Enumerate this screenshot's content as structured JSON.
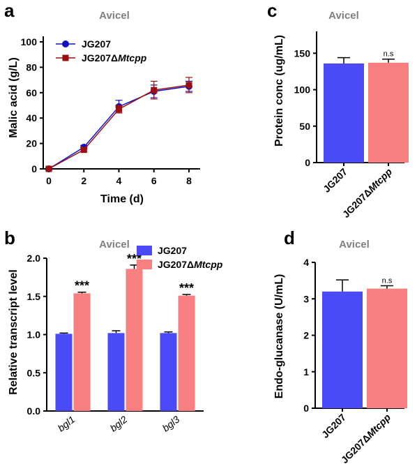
{
  "colors": {
    "blue": "#4a4af7",
    "pink": "#f98080",
    "line_blue": "#1010c8",
    "line_red": "#9a1010",
    "title_gray": "#7f7f7f"
  },
  "panel_letters": {
    "a": "a",
    "b": "b",
    "c": "c",
    "d": "d"
  },
  "mtcpp_suffix": "Mtcpp",
  "chart_data": [
    {
      "panel": "a",
      "type": "line",
      "title": "Avicel",
      "xlabel": "Time (d)",
      "ylabel": "Malic acid (g/L)",
      "xlim": [
        0,
        9
      ],
      "ylim": [
        0,
        100
      ],
      "x_ticks": [
        "0",
        "2",
        "4",
        "6",
        "8"
      ],
      "y_ticks": [
        "0",
        "20",
        "40",
        "60",
        "80",
        "100"
      ],
      "legend_position": "top-left",
      "series": [
        {
          "name": "JG207",
          "marker": "circle",
          "x": [
            0,
            2,
            4,
            6,
            8
          ],
          "y": [
            0,
            17,
            49,
            61,
            65
          ],
          "err": [
            1,
            1.5,
            5,
            5,
            4
          ]
        },
        {
          "name": "JG207Δ",
          "name_suffix": "Mtcpp",
          "marker": "square",
          "x": [
            0,
            2,
            4,
            6,
            8
          ],
          "y": [
            0,
            15,
            47,
            62,
            66
          ],
          "err": [
            1,
            1.5,
            3,
            7,
            6
          ]
        }
      ]
    },
    {
      "panel": "b",
      "type": "bar",
      "title": "Avicel",
      "ylabel": "Relative transcript level",
      "ylim": [
        0,
        2.0
      ],
      "y_ticks": [
        "0.0",
        "0.5",
        "1.0",
        "1.5",
        "2.0"
      ],
      "categories": [
        "bgl1",
        "bgl2",
        "bgl3"
      ],
      "legend_position": "top-right",
      "series": [
        {
          "name": "JG207",
          "values": [
            1.01,
            1.02,
            1.02
          ],
          "err": [
            0.01,
            0.03,
            0.015
          ]
        },
        {
          "name": "JG207Δ",
          "name_suffix": "Mtcpp",
          "values": [
            1.54,
            1.86,
            1.51
          ],
          "err": [
            0.015,
            0.05,
            0.015
          ],
          "annotations": [
            "***",
            "***",
            "***"
          ]
        }
      ]
    },
    {
      "panel": "c",
      "type": "bar",
      "title": "Avicel",
      "ylabel": "Protein conc (ug/mL)",
      "ylim": [
        0,
        180
      ],
      "y_ticks": [
        "0",
        "50",
        "100",
        "150"
      ],
      "categories": [
        "JG207",
        "JG207Δ"
      ],
      "category_suffix": [
        "",
        "Mtcpp"
      ],
      "values": [
        136,
        137
      ],
      "err": [
        8,
        5
      ],
      "annotations": [
        "",
        "n.s"
      ]
    },
    {
      "panel": "d",
      "type": "bar",
      "title": "Avicel",
      "ylabel": "Endo-glucanase (U/mL)",
      "ylim": [
        0,
        4
      ],
      "y_ticks": [
        "0",
        "1",
        "2",
        "3",
        "4"
      ],
      "categories": [
        "JG207",
        "JG207Δ"
      ],
      "category_suffix": [
        "",
        "Mtcpp"
      ],
      "values": [
        3.2,
        3.28
      ],
      "err": [
        0.32,
        0.08
      ],
      "annotations": [
        "",
        "n.s"
      ]
    }
  ]
}
